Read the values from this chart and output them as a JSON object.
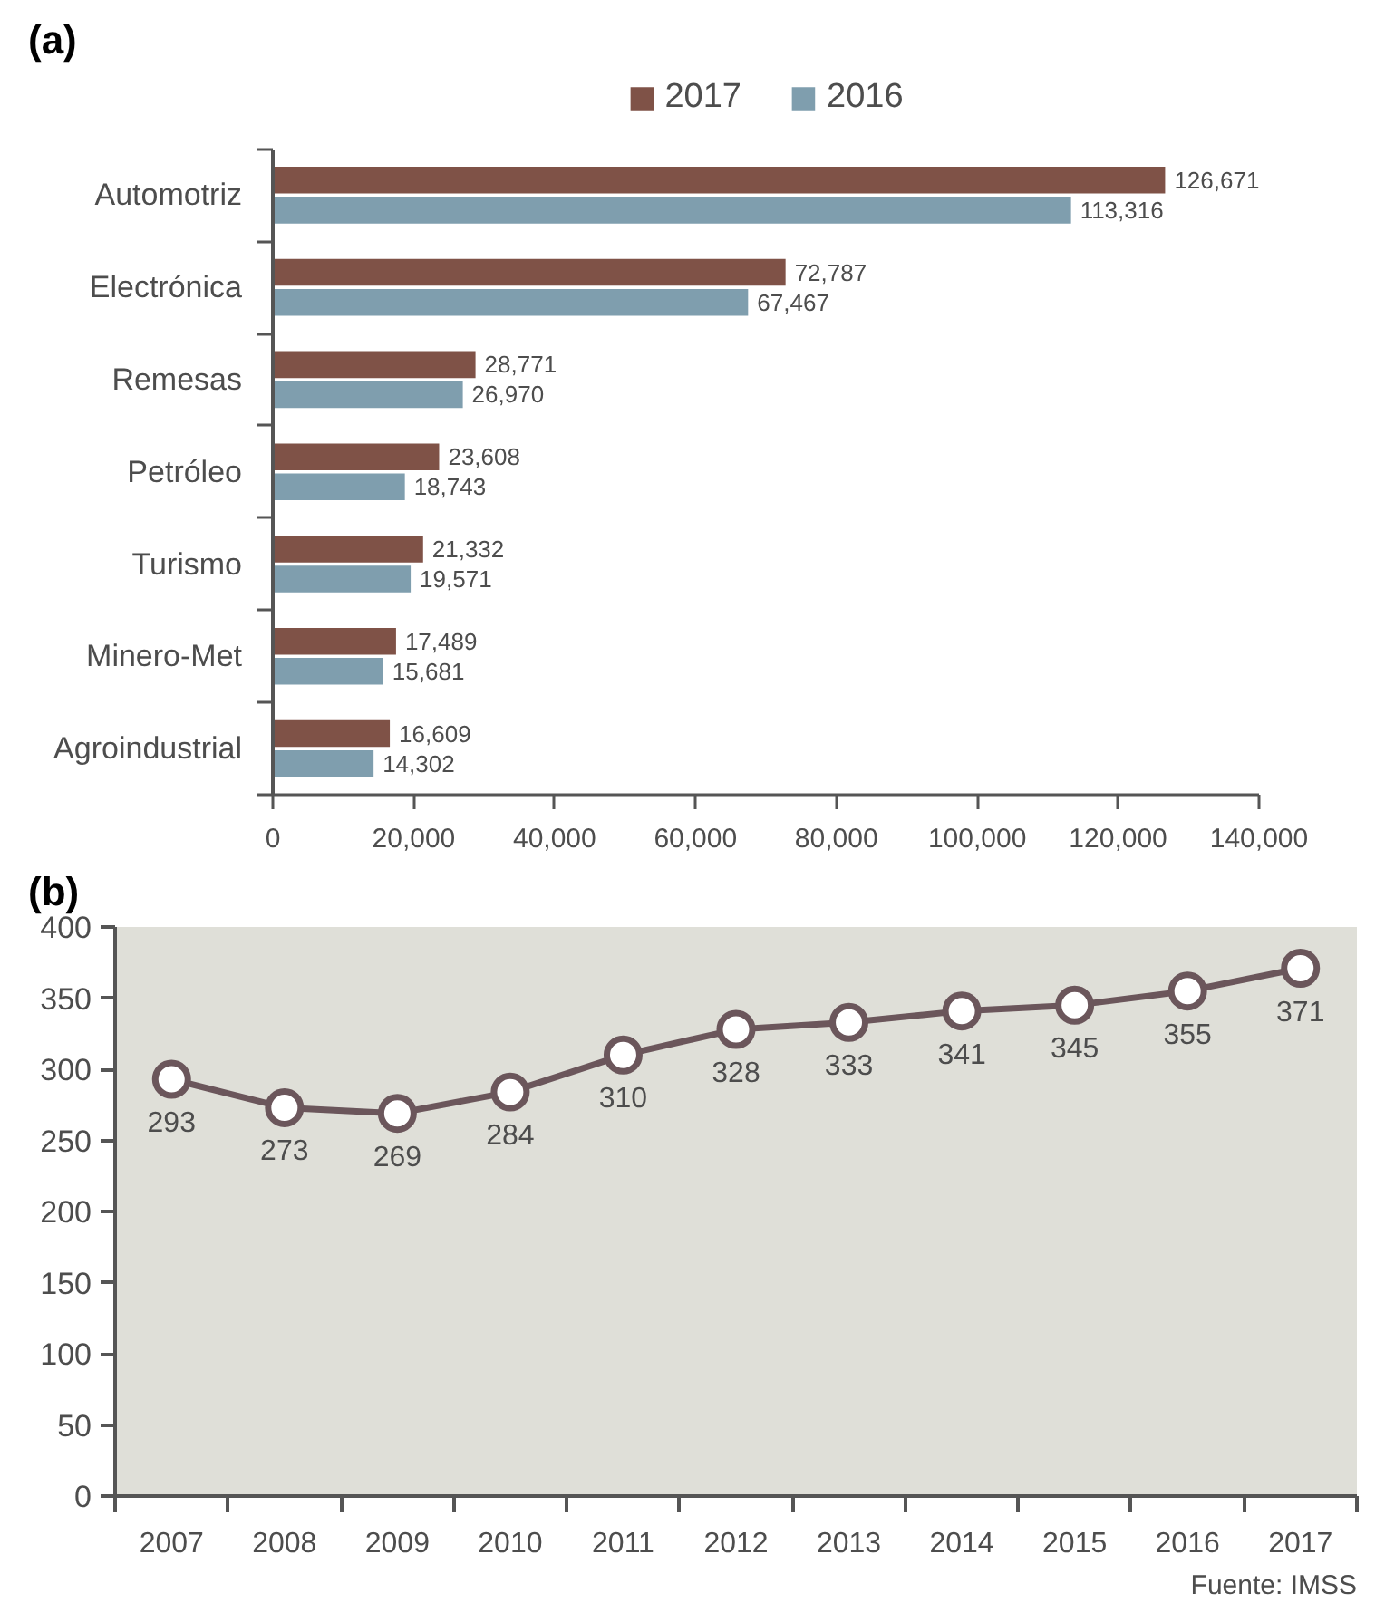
{
  "chart_data": [
    {
      "type": "bar",
      "title": "(a)",
      "orientation": "horizontal",
      "categories": [
        "Automotriz",
        "Electrónica",
        "Remesas",
        "Petróleo",
        "Turismo",
        "Minero-Met",
        "Agroindustrial"
      ],
      "series": [
        {
          "name": "2017",
          "color": "#7f5247",
          "values": [
            126671,
            72787,
            28771,
            23608,
            21332,
            17489,
            16609
          ],
          "value_labels": [
            "126,671",
            "72,787",
            "28,771",
            "23,608",
            "21,332",
            "17,489",
            "16,609"
          ]
        },
        {
          "name": "2016",
          "color": "#7f9eae",
          "values": [
            113316,
            67467,
            26970,
            18743,
            19571,
            15681,
            14302
          ],
          "value_labels": [
            "113,316",
            "67,467",
            "26,970",
            "18,743",
            "19,571",
            "15,681",
            "14,302"
          ]
        }
      ],
      "xlim": [
        0,
        140000
      ],
      "xticks": [
        {
          "value": 0,
          "label": "0"
        },
        {
          "value": 20000,
          "label": "20,000"
        },
        {
          "value": 40000,
          "label": "40,000"
        },
        {
          "value": 60000,
          "label": "60,000"
        },
        {
          "value": 80000,
          "label": "80,000"
        },
        {
          "value": 100000,
          "label": "100,000"
        },
        {
          "value": 120000,
          "label": "120,000"
        },
        {
          "value": 140000,
          "label": "140,000"
        }
      ],
      "legend": "top",
      "grid": false
    },
    {
      "type": "line",
      "title": "(b)",
      "categories": [
        "2007",
        "2008",
        "2009",
        "2010",
        "2011",
        "2012",
        "2013",
        "2014",
        "2015",
        "2016",
        "2017"
      ],
      "series": [
        {
          "color": "#6b565b",
          "values": [
            293,
            273,
            269,
            284,
            310,
            328,
            333,
            341,
            345,
            355,
            371
          ]
        }
      ],
      "ylim": [
        0,
        400
      ],
      "yticks": [
        0,
        50,
        100,
        150,
        200,
        250,
        300,
        350,
        400
      ],
      "data_labels": true,
      "marker": "circle",
      "grid": false,
      "annotations": [
        "Fuente: IMSS"
      ]
    }
  ]
}
